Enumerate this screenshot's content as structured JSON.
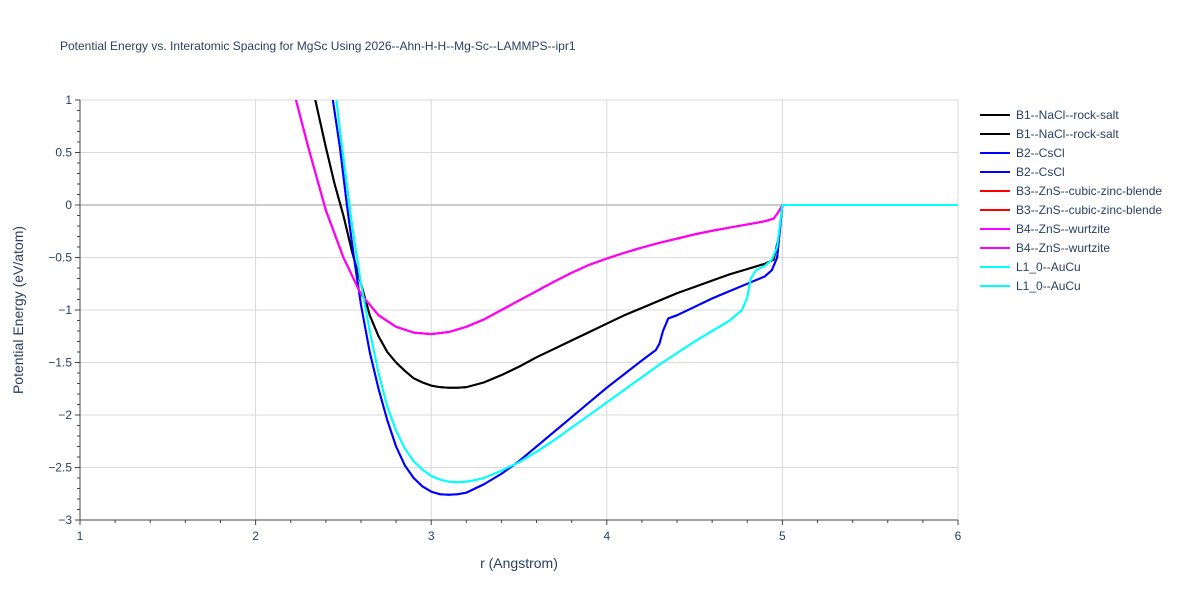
{
  "chart_data": {
    "type": "line",
    "title": "Potential Energy vs. Interatomic Spacing for MgSc Using 2026--Ahn-H-H--Mg-Sc--LAMMPS--ipr1",
    "xlabel": "r (Angstrom)",
    "ylabel": "Potential Energy (eV/atom)",
    "xlim": [
      1,
      6
    ],
    "ylim": [
      -3,
      1
    ],
    "x_ticks": [
      1,
      2,
      3,
      4,
      5,
      6
    ],
    "x_tick_labels": [
      "1",
      "2",
      "3",
      "4",
      "5",
      "6"
    ],
    "y_ticks": [
      1,
      0.5,
      0,
      -0.5,
      -1,
      -1.5,
      -2,
      -2.5,
      -3
    ],
    "y_tick_labels": [
      "1",
      "0.5",
      "0",
      "−0.5",
      "−1",
      "−1.5",
      "−2",
      "−2.5",
      "−3"
    ],
    "grid": true,
    "legend_position": "right",
    "series": [
      {
        "name": "B1--NaCl--rock-salt",
        "color": "#000000",
        "x": [
          2.34,
          2.4,
          2.45,
          2.5,
          2.55,
          2.6,
          2.65,
          2.7,
          2.75,
          2.8,
          2.85,
          2.9,
          2.95,
          3.0,
          3.05,
          3.1,
          3.15,
          3.2,
          3.3,
          3.4,
          3.5,
          3.6,
          3.7,
          3.8,
          3.9,
          4.0,
          4.1,
          4.2,
          4.3,
          4.4,
          4.5,
          4.6,
          4.7,
          4.8,
          4.9,
          4.95,
          4.98,
          5.0,
          5.5,
          6.0
        ],
        "y": [
          1.0,
          0.55,
          0.2,
          -0.1,
          -0.45,
          -0.75,
          -1.05,
          -1.25,
          -1.4,
          -1.5,
          -1.58,
          -1.65,
          -1.69,
          -1.72,
          -1.735,
          -1.74,
          -1.74,
          -1.735,
          -1.69,
          -1.62,
          -1.54,
          -1.45,
          -1.37,
          -1.29,
          -1.21,
          -1.13,
          -1.05,
          -0.98,
          -0.91,
          -0.84,
          -0.78,
          -0.72,
          -0.66,
          -0.61,
          -0.56,
          -0.52,
          -0.3,
          0.0,
          0.0,
          0.0
        ]
      },
      {
        "name": "B1--NaCl--rock-salt",
        "color": "#000000",
        "x": [
          2.34,
          2.4,
          2.45,
          2.5,
          2.55,
          2.6,
          2.65,
          2.7,
          2.75,
          2.8,
          2.85,
          2.9,
          2.95,
          3.0,
          3.05,
          3.1,
          3.15,
          3.2,
          3.3,
          3.4,
          3.5,
          3.6,
          3.7,
          3.8,
          3.9,
          4.0,
          4.1,
          4.2,
          4.3,
          4.4,
          4.5,
          4.6,
          4.7,
          4.8,
          4.9,
          4.95,
          4.98,
          5.0,
          5.5,
          6.0
        ],
        "y": [
          1.0,
          0.55,
          0.2,
          -0.1,
          -0.45,
          -0.75,
          -1.05,
          -1.25,
          -1.4,
          -1.5,
          -1.58,
          -1.65,
          -1.69,
          -1.72,
          -1.735,
          -1.74,
          -1.74,
          -1.735,
          -1.69,
          -1.62,
          -1.54,
          -1.45,
          -1.37,
          -1.29,
          -1.21,
          -1.13,
          -1.05,
          -0.98,
          -0.91,
          -0.84,
          -0.78,
          -0.72,
          -0.66,
          -0.61,
          -0.56,
          -0.52,
          -0.3,
          0.0,
          0.0,
          0.0
        ]
      },
      {
        "name": "B2--CsCl",
        "color": "#0000ff",
        "x": [
          2.44,
          2.48,
          2.52,
          2.56,
          2.6,
          2.65,
          2.7,
          2.75,
          2.8,
          2.85,
          2.9,
          2.95,
          3.0,
          3.05,
          3.1,
          3.15,
          3.2,
          3.3,
          3.4,
          3.5,
          3.6,
          3.7,
          3.8,
          3.9,
          4.0,
          4.1,
          4.2,
          4.28,
          4.3,
          4.32,
          4.35,
          4.4,
          4.5,
          4.6,
          4.7,
          4.8,
          4.9,
          4.94,
          4.97,
          5.0,
          5.5,
          6.0
        ],
        "y": [
          1.0,
          0.55,
          0.0,
          -0.5,
          -0.95,
          -1.4,
          -1.75,
          -2.05,
          -2.3,
          -2.48,
          -2.6,
          -2.68,
          -2.73,
          -2.755,
          -2.76,
          -2.755,
          -2.74,
          -2.66,
          -2.56,
          -2.44,
          -2.3,
          -2.16,
          -2.02,
          -1.88,
          -1.74,
          -1.61,
          -1.48,
          -1.38,
          -1.32,
          -1.2,
          -1.08,
          -1.05,
          -0.97,
          -0.89,
          -0.82,
          -0.75,
          -0.68,
          -0.62,
          -0.5,
          0.0,
          0.0,
          0.0
        ]
      },
      {
        "name": "B2--CsCl",
        "color": "#0000ff",
        "x": [
          2.44,
          2.48,
          2.52,
          2.56,
          2.6,
          2.65,
          2.7,
          2.75,
          2.8,
          2.85,
          2.9,
          2.95,
          3.0,
          3.05,
          3.1,
          3.15,
          3.2,
          3.3,
          3.4,
          3.5,
          3.6,
          3.7,
          3.8,
          3.9,
          4.0,
          4.1,
          4.2,
          4.28,
          4.3,
          4.32,
          4.35,
          4.4,
          4.5,
          4.6,
          4.7,
          4.8,
          4.9,
          4.94,
          4.97,
          5.0,
          5.5,
          6.0
        ],
        "y": [
          1.0,
          0.55,
          0.0,
          -0.5,
          -0.95,
          -1.4,
          -1.75,
          -2.05,
          -2.3,
          -2.48,
          -2.6,
          -2.68,
          -2.73,
          -2.755,
          -2.76,
          -2.755,
          -2.74,
          -2.66,
          -2.56,
          -2.44,
          -2.3,
          -2.16,
          -2.02,
          -1.88,
          -1.74,
          -1.61,
          -1.48,
          -1.38,
          -1.32,
          -1.2,
          -1.08,
          -1.05,
          -0.97,
          -0.89,
          -0.82,
          -0.75,
          -0.68,
          -0.62,
          -0.5,
          0.0,
          0.0,
          0.0
        ]
      },
      {
        "name": "B3--ZnS--cubic-zinc-blende",
        "color": "#ff0000",
        "x": [
          2.23,
          2.3,
          2.4,
          2.5,
          2.6,
          2.7,
          2.8,
          2.9,
          3.0,
          3.1,
          3.2,
          3.3,
          3.4,
          3.5,
          3.6,
          3.7,
          3.8,
          3.9,
          4.0,
          4.1,
          4.2,
          4.3,
          4.4,
          4.5,
          4.6,
          4.7,
          4.8,
          4.9,
          4.95,
          4.98,
          5.0,
          5.5,
          6.0
        ],
        "y": [
          1.0,
          0.55,
          -0.05,
          -0.5,
          -0.85,
          -1.05,
          -1.16,
          -1.215,
          -1.23,
          -1.21,
          -1.16,
          -1.09,
          -1.0,
          -0.91,
          -0.82,
          -0.73,
          -0.645,
          -0.57,
          -0.51,
          -0.455,
          -0.405,
          -0.36,
          -0.32,
          -0.28,
          -0.245,
          -0.215,
          -0.185,
          -0.155,
          -0.13,
          -0.06,
          0.0,
          0.0,
          0.0
        ]
      },
      {
        "name": "B3--ZnS--cubic-zinc-blende",
        "color": "#ff0000",
        "x": [
          2.23,
          2.3,
          2.4,
          2.5,
          2.6,
          2.7,
          2.8,
          2.9,
          3.0,
          3.1,
          3.2,
          3.3,
          3.4,
          3.5,
          3.6,
          3.7,
          3.8,
          3.9,
          4.0,
          4.1,
          4.2,
          4.3,
          4.4,
          4.5,
          4.6,
          4.7,
          4.8,
          4.9,
          4.95,
          4.98,
          5.0,
          5.5,
          6.0
        ],
        "y": [
          1.0,
          0.55,
          -0.05,
          -0.5,
          -0.85,
          -1.05,
          -1.16,
          -1.215,
          -1.23,
          -1.21,
          -1.16,
          -1.09,
          -1.0,
          -0.91,
          -0.82,
          -0.73,
          -0.645,
          -0.57,
          -0.51,
          -0.455,
          -0.405,
          -0.36,
          -0.32,
          -0.28,
          -0.245,
          -0.215,
          -0.185,
          -0.155,
          -0.13,
          -0.06,
          0.0,
          0.0,
          0.0
        ]
      },
      {
        "name": "B4--ZnS--wurtzite",
        "color": "#ff00ff",
        "x": [
          2.23,
          2.3,
          2.4,
          2.5,
          2.6,
          2.7,
          2.8,
          2.9,
          3.0,
          3.1,
          3.2,
          3.3,
          3.4,
          3.5,
          3.6,
          3.7,
          3.8,
          3.9,
          4.0,
          4.1,
          4.2,
          4.3,
          4.4,
          4.5,
          4.6,
          4.7,
          4.8,
          4.9,
          4.95,
          4.98,
          5.0,
          5.5,
          6.0
        ],
        "y": [
          1.0,
          0.55,
          -0.05,
          -0.5,
          -0.85,
          -1.05,
          -1.16,
          -1.215,
          -1.23,
          -1.21,
          -1.16,
          -1.09,
          -1.0,
          -0.91,
          -0.82,
          -0.73,
          -0.645,
          -0.57,
          -0.51,
          -0.455,
          -0.405,
          -0.36,
          -0.32,
          -0.28,
          -0.245,
          -0.215,
          -0.185,
          -0.155,
          -0.13,
          -0.06,
          0.0,
          0.0,
          0.0
        ]
      },
      {
        "name": "B4--ZnS--wurtzite",
        "color": "#ff00ff",
        "x": [
          2.23,
          2.3,
          2.4,
          2.5,
          2.6,
          2.7,
          2.8,
          2.9,
          3.0,
          3.1,
          3.2,
          3.3,
          3.4,
          3.5,
          3.6,
          3.7,
          3.8,
          3.9,
          4.0,
          4.1,
          4.2,
          4.3,
          4.4,
          4.5,
          4.6,
          4.7,
          4.8,
          4.9,
          4.95,
          4.98,
          5.0,
          5.5,
          6.0
        ],
        "y": [
          1.0,
          0.55,
          -0.05,
          -0.5,
          -0.85,
          -1.05,
          -1.16,
          -1.215,
          -1.23,
          -1.21,
          -1.16,
          -1.09,
          -1.0,
          -0.91,
          -0.82,
          -0.73,
          -0.645,
          -0.57,
          -0.51,
          -0.455,
          -0.405,
          -0.36,
          -0.32,
          -0.28,
          -0.245,
          -0.215,
          -0.185,
          -0.155,
          -0.13,
          -0.06,
          0.0,
          0.0,
          0.0
        ]
      },
      {
        "name": "L1_0--AuCu",
        "color": "#00ffff",
        "x": [
          2.46,
          2.5,
          2.55,
          2.6,
          2.65,
          2.7,
          2.75,
          2.8,
          2.85,
          2.9,
          2.95,
          3.0,
          3.05,
          3.1,
          3.15,
          3.2,
          3.25,
          3.3,
          3.4,
          3.5,
          3.6,
          3.7,
          3.8,
          3.9,
          4.0,
          4.1,
          4.2,
          4.3,
          4.4,
          4.5,
          4.6,
          4.7,
          4.77,
          4.8,
          4.82,
          4.85,
          4.9,
          4.94,
          4.97,
          5.0,
          5.5,
          6.0
        ],
        "y": [
          1.0,
          0.45,
          -0.2,
          -0.75,
          -1.2,
          -1.6,
          -1.92,
          -2.15,
          -2.32,
          -2.44,
          -2.52,
          -2.58,
          -2.615,
          -2.635,
          -2.64,
          -2.635,
          -2.62,
          -2.6,
          -2.53,
          -2.45,
          -2.35,
          -2.24,
          -2.12,
          -2.0,
          -1.88,
          -1.76,
          -1.64,
          -1.52,
          -1.41,
          -1.3,
          -1.2,
          -1.1,
          -1.0,
          -0.88,
          -0.7,
          -0.62,
          -0.58,
          -0.52,
          -0.4,
          0.0,
          0.0,
          0.0
        ]
      },
      {
        "name": "L1_0--AuCu",
        "color": "#00ffff",
        "x": [
          2.46,
          2.5,
          2.55,
          2.6,
          2.65,
          2.7,
          2.75,
          2.8,
          2.85,
          2.9,
          2.95,
          3.0,
          3.05,
          3.1,
          3.15,
          3.2,
          3.25,
          3.3,
          3.4,
          3.5,
          3.6,
          3.7,
          3.8,
          3.9,
          4.0,
          4.1,
          4.2,
          4.3,
          4.4,
          4.5,
          4.6,
          4.7,
          4.77,
          4.8,
          4.82,
          4.85,
          4.9,
          4.94,
          4.97,
          5.0,
          5.5,
          6.0
        ],
        "y": [
          1.0,
          0.45,
          -0.2,
          -0.75,
          -1.2,
          -1.6,
          -1.92,
          -2.15,
          -2.32,
          -2.44,
          -2.52,
          -2.58,
          -2.615,
          -2.635,
          -2.64,
          -2.635,
          -2.62,
          -2.6,
          -2.53,
          -2.45,
          -2.35,
          -2.24,
          -2.12,
          -2.0,
          -1.88,
          -1.76,
          -1.64,
          -1.52,
          -1.41,
          -1.3,
          -1.2,
          -1.1,
          -1.0,
          -0.88,
          -0.7,
          -0.62,
          -0.58,
          -0.52,
          -0.4,
          0.0,
          0.0,
          0.0
        ]
      }
    ]
  }
}
